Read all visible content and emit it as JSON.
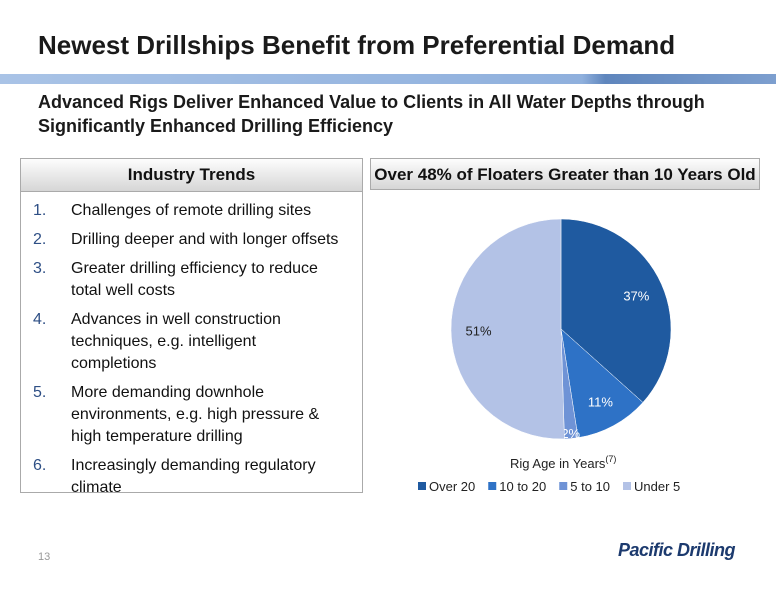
{
  "title": "Newest Drillships Benefit from Preferential Demand",
  "subtitle": "Advanced Rigs Deliver Enhanced Value to Clients in All Water Depths through Significantly Enhanced Drilling Efficiency",
  "trends": {
    "heading": "Industry Trends",
    "items": [
      {
        "number": "1.",
        "text": "Challenges of remote drilling sites"
      },
      {
        "number": "2.",
        "text": "Drilling deeper and with longer offsets"
      },
      {
        "number": "3.",
        "text": "Greater drilling efficiency to reduce total well costs"
      },
      {
        "number": "4.",
        "text": "Advances in well construction techniques, e.g. intelligent completions"
      },
      {
        "number": "5.",
        "text": "More demanding downhole environments, e.g. high pressure & high temperature drilling"
      },
      {
        "number": "6.",
        "text": "Increasingly demanding regulatory climate"
      }
    ]
  },
  "chart_data": {
    "type": "pie",
    "title": "Over 48% of Floaters Greater than 10 Years Old",
    "axis_label": "Rig Age in Years",
    "footnote": "(7)",
    "categories": [
      "Over 20",
      "10 to 20",
      "5 to 10",
      "Under 5"
    ],
    "values": [
      37,
      11,
      2,
      51
    ],
    "value_labels": [
      "37%",
      "11%",
      "2%",
      "51%"
    ],
    "colors": [
      "#1f5aa0",
      "#2e72c6",
      "#6f93d6",
      "#b3c2e6"
    ],
    "legend": "bottom"
  },
  "page_number": "13",
  "logo": "Pacific Drilling"
}
